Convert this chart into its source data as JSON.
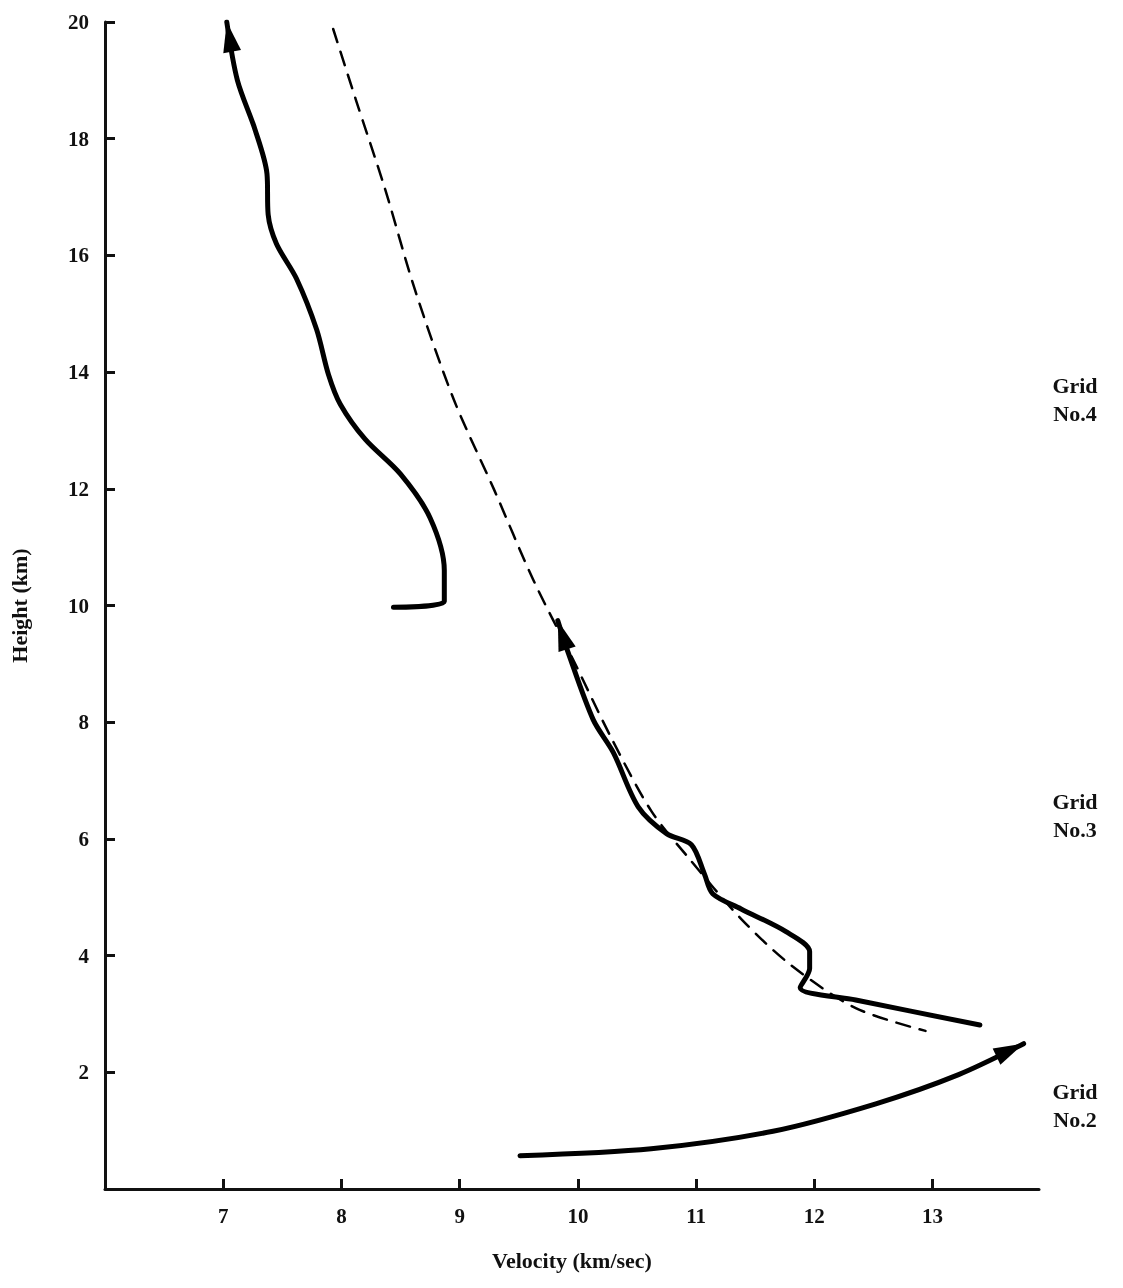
{
  "chart_data": {
    "type": "line",
    "xlabel": "Velocity (km/sec)",
    "ylabel": "Height (km)",
    "xlim": [
      6,
      13.9
    ],
    "xticks": [
      7,
      8,
      9,
      10,
      11,
      12,
      13
    ],
    "ylim": [
      0,
      20
    ],
    "yticks": [
      2,
      4,
      6,
      8,
      10,
      12,
      14,
      16,
      18,
      20
    ],
    "grid": false,
    "marker": "none",
    "line_style": "solid",
    "annotations": [
      "Grid\nNo.4",
      "Grid\nNo.3",
      "Grid\nNo.2"
    ],
    "series": [
      {
        "color": "#000000",
        "x": [
          8.44,
          8.87,
          8.87,
          8.75,
          8.5,
          8.2,
          7.99,
          7.89,
          7.79,
          7.62,
          7.45,
          7.38,
          7.37,
          7.27,
          7.12,
          7.03
        ],
        "values": [
          9.97,
          10.07,
          10.6,
          11.5,
          12.25,
          12.85,
          13.45,
          13.96,
          14.73,
          15.6,
          16.2,
          16.7,
          17.4,
          18.15,
          19.0,
          20.0
        ]
      },
      {
        "color": "#000000",
        "line_style": "dashed",
        "x": [
          7.93,
          8.12,
          8.37,
          8.62,
          8.95,
          9.29,
          9.62,
          9.96,
          10.29,
          10.62,
          10.93,
          11.38,
          11.8,
          12.35,
          12.94
        ],
        "values": [
          19.88,
          18.68,
          17.13,
          15.42,
          13.53,
          11.99,
          10.45,
          9.07,
          7.7,
          6.48,
          5.69,
          4.63,
          3.84,
          3.1,
          2.71
        ]
      },
      {
        "color": "#000000",
        "x": [
          13.4,
          12.35,
          11.88,
          11.96,
          11.96,
          11.76,
          11.38,
          11.14,
          11.07,
          10.96,
          10.75,
          10.51,
          10.3,
          10.13,
          9.92,
          9.83
        ],
        "values": [
          2.81,
          3.24,
          3.45,
          3.78,
          4.07,
          4.41,
          4.8,
          5.06,
          5.4,
          5.9,
          6.09,
          6.55,
          7.48,
          8.04,
          9.18,
          9.74
        ]
      },
      {
        "color": "#000000",
        "x": [
          9.51,
          10.62,
          11.65,
          12.52,
          13.22,
          13.77
        ],
        "values": [
          0.57,
          0.69,
          0.99,
          1.46,
          1.96,
          2.49
        ]
      }
    ]
  }
}
